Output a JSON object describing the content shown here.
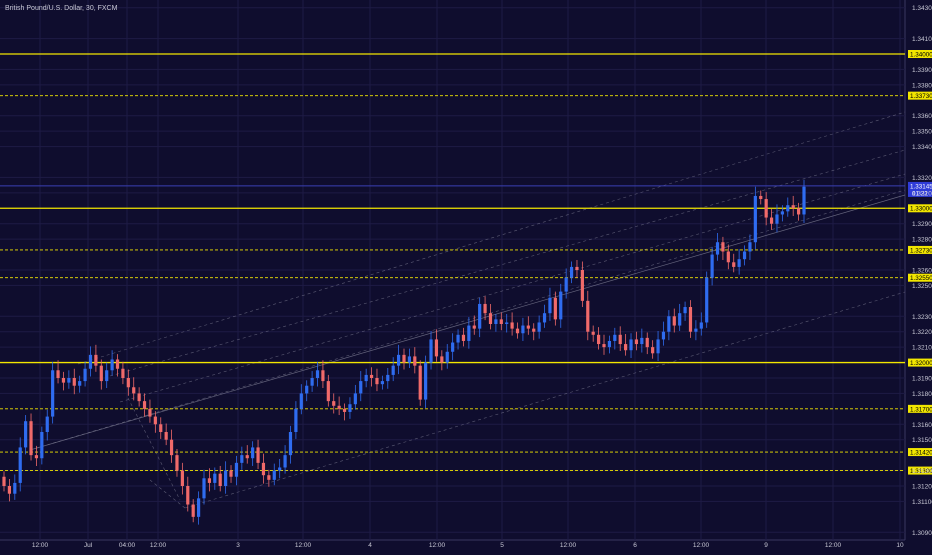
{
  "header": {
    "symbol_title": "British Pound/U.S. Dollar, 30, FXCM"
  },
  "colors": {
    "background": "#0f0d2e",
    "grid": "#1e1b45",
    "axis_text": "#c9c9d6",
    "bull": "#2f6cf0",
    "bear": "#f06a6a",
    "level": "#f2e600",
    "level_label_bg": "#f2e600",
    "level_label_text": "#000000",
    "price_line": "#3a3fb5",
    "channel": "#7a7a90"
  },
  "chart_data": {
    "type": "candlestick",
    "ylim": [
      1.3085,
      1.3435
    ],
    "y_ticks": [
      "1.34300",
      "1.34100",
      "1.33900",
      "1.33800",
      "1.33600",
      "1.33500",
      "1.33400",
      "1.33200",
      "1.33100",
      "1.32900",
      "1.32800",
      "1.32600",
      "1.32500",
      "1.32300",
      "1.32200",
      "1.32100",
      "1.31900",
      "1.31800",
      "1.31600",
      "1.31500",
      "1.31300",
      "1.31200",
      "1.31100",
      "1.30900"
    ],
    "y_tick_values": [
      1.343,
      1.341,
      1.339,
      1.338,
      1.336,
      1.335,
      1.334,
      1.332,
      1.331,
      1.329,
      1.328,
      1.326,
      1.325,
      1.323,
      1.322,
      1.321,
      1.319,
      1.318,
      1.316,
      1.315,
      1.313,
      1.312,
      1.311,
      1.309
    ],
    "x_ticks": [
      "12:00",
      "Jul",
      "04:00",
      "12:00",
      "3",
      "12:00",
      "4",
      "12:00",
      "5",
      "12:00",
      "6",
      "12:00",
      "9",
      "12:00",
      "10"
    ],
    "horizontal_levels": [
      {
        "label": "1.34000",
        "value": 1.34,
        "style": "solid"
      },
      {
        "label": "1.33730",
        "value": 1.3373,
        "style": "dashed"
      },
      {
        "label": "1.33000",
        "value": 1.33,
        "style": "solid"
      },
      {
        "label": "1.32730",
        "value": 1.3273,
        "style": "dashed"
      },
      {
        "label": "1.32550",
        "value": 1.3255,
        "style": "dashed"
      },
      {
        "label": "1.32000",
        "value": 1.32,
        "style": "solid"
      },
      {
        "label": "1.31700",
        "value": 1.317,
        "style": "dashed"
      },
      {
        "label": "1.31420",
        "value": 1.3142,
        "style": "dashed"
      },
      {
        "label": "1.31300",
        "value": 1.313,
        "style": "dashed"
      }
    ],
    "current_price": {
      "label": "1.33145",
      "value": 1.33145,
      "countdown": "01:22"
    },
    "series_close": [
      1.312,
      1.3115,
      1.3122,
      1.3145,
      1.3162,
      1.314,
      1.3138,
      1.3155,
      1.3165,
      1.3195,
      1.319,
      1.3187,
      1.319,
      1.3185,
      1.3188,
      1.3196,
      1.3205,
      1.3198,
      1.3188,
      1.3195,
      1.3202,
      1.3196,
      1.319,
      1.3184,
      1.318,
      1.3175,
      1.317,
      1.3165,
      1.316,
      1.3155,
      1.315,
      1.314,
      1.313,
      1.312,
      1.3108,
      1.31,
      1.3112,
      1.3125,
      1.3122,
      1.3128,
      1.312,
      1.313,
      1.3126,
      1.3135,
      1.314,
      1.3138,
      1.3145,
      1.3135,
      1.3127,
      1.3124,
      1.313,
      1.3132,
      1.314,
      1.3155,
      1.317,
      1.318,
      1.3185,
      1.319,
      1.3195,
      1.3188,
      1.3175,
      1.3172,
      1.317,
      1.3168,
      1.3173,
      1.318,
      1.3188,
      1.3192,
      1.319,
      1.3186,
      1.3188,
      1.3192,
      1.3198,
      1.3205,
      1.32,
      1.3204,
      1.3198,
      1.3176,
      1.32,
      1.3215,
      1.3204,
      1.32,
      1.3207,
      1.3213,
      1.3218,
      1.3214,
      1.3224,
      1.3222,
      1.3238,
      1.3232,
      1.3225,
      1.3228,
      1.3225,
      1.3226,
      1.3222,
      1.3219,
      1.3224,
      1.3222,
      1.322,
      1.3226,
      1.3232,
      1.3242,
      1.3228,
      1.3246,
      1.3255,
      1.3262,
      1.326,
      1.324,
      1.322,
      1.3218,
      1.3212,
      1.321,
      1.3214,
      1.3218,
      1.3212,
      1.3208,
      1.3215,
      1.3212,
      1.3216,
      1.321,
      1.3206,
      1.3215,
      1.322,
      1.323,
      1.3224,
      1.3232,
      1.3236,
      1.322,
      1.3222,
      1.3226,
      1.3255,
      1.327,
      1.3278,
      1.3272,
      1.3265,
      1.3262,
      1.3267,
      1.3272,
      1.3278,
      1.3308,
      1.3306,
      1.3294,
      1.329,
      1.3296,
      1.3298,
      1.3302,
      1.33,
      1.3296,
      1.3314
    ]
  }
}
